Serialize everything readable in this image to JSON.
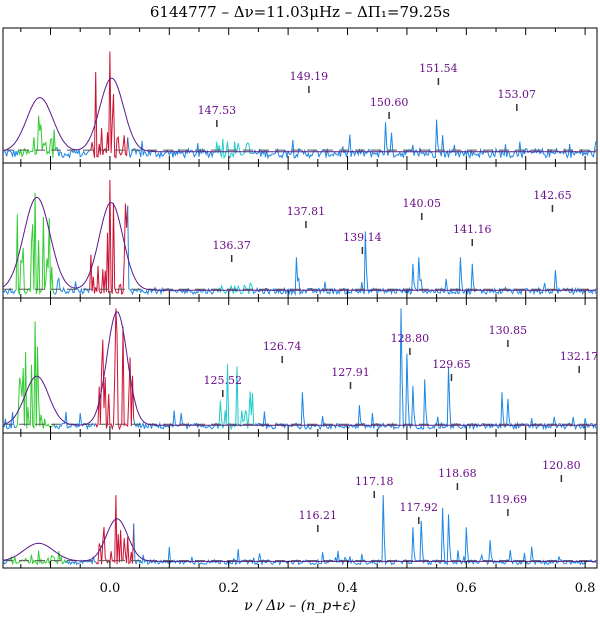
{
  "chart_data": {
    "type": "line",
    "title": "6144777 – Δν=11.03μHz – ΔΠ₁=79.25s",
    "xlabel": "ν / Δν – (n_p+ε)",
    "ylabel": "",
    "xlim": [
      -0.18,
      0.82
    ],
    "x_ticks": [
      0.0,
      0.2,
      0.4,
      0.6,
      0.8
    ],
    "x_tick_labels": [
      "0.0",
      "0.2",
      "0.4",
      "0.6",
      "0.8"
    ],
    "colors": {
      "l2": "#33cc33",
      "l0": "#cc1133",
      "l3": "#22cccc",
      "l1": "#1e88e5",
      "fit": "#5a1a8a",
      "label": "#6a0f8a"
    },
    "panels": [
      {
        "id": "panel-1",
        "noise_level": 0.08,
        "ridges": [
          {
            "type": "l2",
            "center": -0.12,
            "width": 0.02,
            "amp": 0.35
          },
          {
            "type": "l0",
            "center": 0.0,
            "width": 0.02,
            "amp": 0.85
          },
          {
            "type": "l3",
            "center": 0.21,
            "width": 0.02,
            "amp": 0.15
          }
        ],
        "fit_gaussians": [
          {
            "center": -0.118,
            "sigma": 0.022,
            "amp": 0.42
          },
          {
            "center": 0.003,
            "sigma": 0.02,
            "amp": 0.57
          }
        ],
        "l1_peaks": [
          [
            0.18,
            0.15
          ],
          [
            0.465,
            0.3
          ],
          [
            0.475,
            0.22
          ],
          [
            0.55,
            0.32
          ],
          [
            0.56,
            0.2
          ],
          [
            0.69,
            0.15
          ]
        ],
        "annotations": [
          {
            "label": "147.53",
            "x": 0.18
          },
          {
            "label": "149.19",
            "x": 0.335
          },
          {
            "label": "150.60",
            "x": 0.47
          },
          {
            "label": "151.54",
            "x": 0.553
          },
          {
            "label": "153.07",
            "x": 0.685
          }
        ]
      },
      {
        "id": "panel-2",
        "noise_level": 0.05,
        "ridges": [
          {
            "type": "l2",
            "center": -0.125,
            "width": 0.02,
            "amp": 0.8
          },
          {
            "type": "l0",
            "center": 0.0,
            "width": 0.02,
            "amp": 0.9
          },
          {
            "type": "l3",
            "center": 0.21,
            "width": 0.02,
            "amp": 0.08
          }
        ],
        "fit_gaussians": [
          {
            "center": -0.123,
            "sigma": 0.022,
            "amp": 0.72
          },
          {
            "center": 0.002,
            "sigma": 0.02,
            "amp": 0.68
          }
        ],
        "l1_peaks": [
          [
            0.315,
            0.3
          ],
          [
            0.43,
            0.5
          ],
          [
            0.51,
            0.25
          ],
          [
            0.52,
            0.3
          ],
          [
            0.59,
            0.3
          ],
          [
            0.61,
            0.25
          ],
          [
            0.75,
            0.2
          ]
        ],
        "annotations": [
          {
            "label": "136.37",
            "x": 0.205
          },
          {
            "label": "137.81",
            "x": 0.33
          },
          {
            "label": "139.14",
            "x": 0.425
          },
          {
            "label": "140.05",
            "x": 0.525
          },
          {
            "label": "141.16",
            "x": 0.61
          },
          {
            "label": "142.65",
            "x": 0.745
          }
        ]
      },
      {
        "id": "panel-3",
        "noise_level": 0.05,
        "ridges": [
          {
            "type": "l2",
            "center": -0.125,
            "width": 0.02,
            "amp": 0.85
          },
          {
            "type": "l0",
            "center": 0.01,
            "width": 0.02,
            "amp": 0.95
          },
          {
            "type": "l3",
            "center": 0.215,
            "width": 0.02,
            "amp": 0.5
          }
        ],
        "fit_gaussians": [
          {
            "center": -0.123,
            "sigma": 0.02,
            "amp": 0.38
          },
          {
            "center": 0.012,
            "sigma": 0.017,
            "amp": 0.88
          }
        ],
        "l1_peaks": [
          [
            0.26,
            0.15
          ],
          [
            0.325,
            0.3
          ],
          [
            0.42,
            0.2
          ],
          [
            0.49,
            0.95
          ],
          [
            0.5,
            0.6
          ],
          [
            0.51,
            0.35
          ],
          [
            0.53,
            0.4
          ],
          [
            0.57,
            0.5
          ],
          [
            0.66,
            0.3
          ],
          [
            0.67,
            0.25
          ],
          [
            0.8,
            0.1
          ]
        ],
        "annotations": [
          {
            "label": "125.52",
            "x": 0.19
          },
          {
            "label": "126.74",
            "x": 0.29
          },
          {
            "label": "127.91",
            "x": 0.405
          },
          {
            "label": "128.80",
            "x": 0.505
          },
          {
            "label": "129.65",
            "x": 0.575
          },
          {
            "label": "130.85",
            "x": 0.67
          },
          {
            "label": "132.17",
            "x": 0.79
          }
        ]
      },
      {
        "id": "panel-4",
        "noise_level": 0.04,
        "ridges": [
          {
            "type": "l2",
            "center": -0.12,
            "width": 0.03,
            "amp": 0.12
          },
          {
            "type": "l0",
            "center": 0.01,
            "width": 0.02,
            "amp": 0.55
          }
        ],
        "fit_gaussians": [
          {
            "center": -0.12,
            "sigma": 0.025,
            "amp": 0.14
          },
          {
            "center": 0.012,
            "sigma": 0.018,
            "amp": 0.33
          }
        ],
        "l1_peaks": [
          [
            0.46,
            0.55
          ],
          [
            0.51,
            0.3
          ],
          [
            0.525,
            0.35
          ],
          [
            0.56,
            0.45
          ],
          [
            0.57,
            0.4
          ],
          [
            0.6,
            0.3
          ],
          [
            0.64,
            0.2
          ],
          [
            0.71,
            0.15
          ]
        ],
        "annotations": [
          {
            "label": "116.21",
            "x": 0.35
          },
          {
            "label": "117.18",
            "x": 0.445
          },
          {
            "label": "117.92",
            "x": 0.52
          },
          {
            "label": "118.68",
            "x": 0.585
          },
          {
            "label": "119.69",
            "x": 0.67
          },
          {
            "label": "120.80",
            "x": 0.76
          }
        ]
      }
    ]
  }
}
